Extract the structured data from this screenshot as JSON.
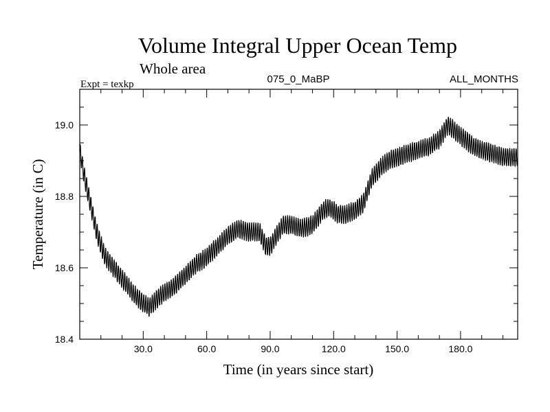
{
  "chart_data": {
    "type": "line",
    "title": "Volume Integral Upper Ocean Temp",
    "subtitle": "Whole area",
    "expt_label": "Expt = texkp",
    "center_label": "075_0_MaBP",
    "right_label": "ALL_MONTHS",
    "xlabel": "Time (in years since start)",
    "ylabel": "Temperature (in C)",
    "xlim": [
      0,
      207
    ],
    "ylim": [
      18.4,
      19.1
    ],
    "xticks": [
      {
        "value": 30,
        "label": "30.0"
      },
      {
        "value": 60,
        "label": "60.0"
      },
      {
        "value": 90,
        "label": "90.0"
      },
      {
        "value": 120,
        "label": "120.0"
      },
      {
        "value": 150,
        "label": "150.0"
      },
      {
        "value": 180,
        "label": "180.0"
      }
    ],
    "yticks": [
      {
        "value": 18.4,
        "label": "18.4"
      },
      {
        "value": 18.6,
        "label": "18.6"
      },
      {
        "value": 18.8,
        "label": "18.8"
      },
      {
        "value": 19.0,
        "label": "19.0"
      }
    ],
    "grid": false,
    "series": [
      {
        "name": "Temperature",
        "color": "#000000",
        "seasonal_amplitude": 0.025,
        "x": [
          0,
          2,
          5,
          8,
          12,
          16,
          20,
          25,
          30,
          33,
          36,
          40,
          45,
          50,
          55,
          60,
          65,
          70,
          75,
          80,
          85,
          88,
          90,
          93,
          96,
          100,
          105,
          110,
          115,
          118,
          122,
          126,
          130,
          134,
          138,
          142,
          146,
          150,
          155,
          160,
          165,
          170,
          174,
          178,
          182,
          186,
          190,
          195,
          200,
          207
        ],
        "y": [
          18.93,
          18.86,
          18.78,
          18.7,
          18.63,
          18.6,
          18.57,
          18.53,
          18.5,
          18.49,
          18.51,
          18.53,
          18.55,
          18.58,
          18.61,
          18.63,
          18.66,
          18.69,
          18.71,
          18.7,
          18.7,
          18.66,
          18.66,
          18.69,
          18.72,
          18.72,
          18.71,
          18.72,
          18.76,
          18.77,
          18.75,
          18.75,
          18.76,
          18.78,
          18.85,
          18.88,
          18.9,
          18.91,
          18.92,
          18.93,
          18.94,
          18.96,
          19.0,
          18.98,
          18.96,
          18.94,
          18.93,
          18.92,
          18.91,
          18.91
        ]
      }
    ]
  }
}
